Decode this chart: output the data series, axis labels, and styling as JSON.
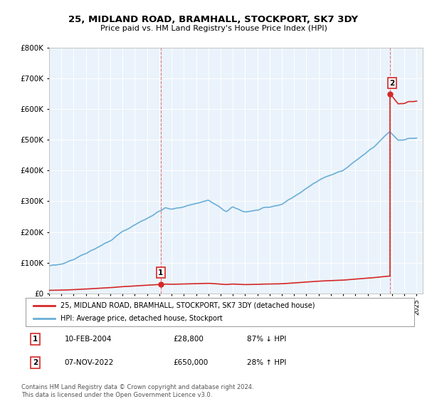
{
  "title": "25, MIDLAND ROAD, BRAMHALL, STOCKPORT, SK7 3DY",
  "subtitle": "Price paid vs. HM Land Registry's House Price Index (HPI)",
  "legend_label_red": "25, MIDLAND ROAD, BRAMHALL, STOCKPORT, SK7 3DY (detached house)",
  "legend_label_blue": "HPI: Average price, detached house, Stockport",
  "sale1_date": "10-FEB-2004",
  "sale1_price": "£28,800",
  "sale1_hpi": "87% ↓ HPI",
  "sale2_date": "07-NOV-2022",
  "sale2_price": "£650,000",
  "sale2_hpi": "28% ↑ HPI",
  "footer": "Contains HM Land Registry data © Crown copyright and database right 2024.\nThis data is licensed under the Open Government Licence v3.0.",
  "hpi_color": "#6baed6",
  "sale_color": "#d62728",
  "sale1_x": 2004.11,
  "sale1_y": 28800,
  "sale2_x": 2022.85,
  "sale2_y": 650000,
  "ylim": [
    0,
    800000
  ],
  "xlim": [
    1995,
    2025.5
  ],
  "yticks": [
    0,
    100000,
    200000,
    300000,
    400000,
    500000,
    600000,
    700000,
    800000
  ],
  "xticks": [
    1995,
    1996,
    1997,
    1998,
    1999,
    2000,
    2001,
    2002,
    2003,
    2004,
    2005,
    2006,
    2007,
    2008,
    2009,
    2010,
    2011,
    2012,
    2013,
    2014,
    2015,
    2016,
    2017,
    2018,
    2019,
    2020,
    2021,
    2022,
    2023,
    2024,
    2025
  ],
  "bg_color": "#eaf3fb",
  "hpi_seed": 42
}
